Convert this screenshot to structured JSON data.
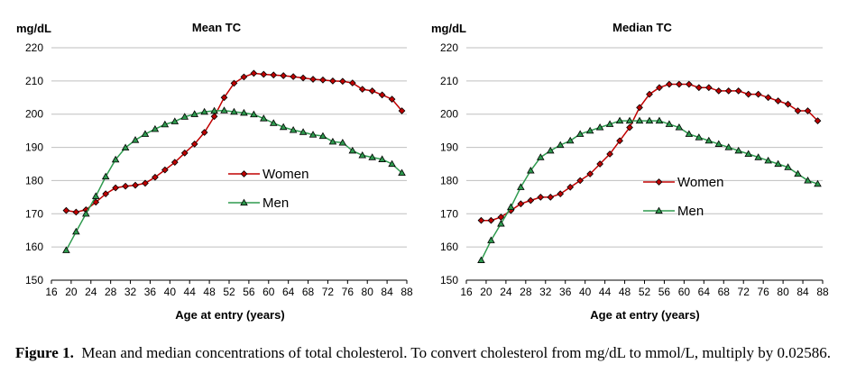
{
  "caption": {
    "label": "Figure 1.",
    "text": "Mean and median concentrations of total cholesterol. To convert cholesterol from mg/dL to mmol/L, multiply by 0.02586."
  },
  "colors": {
    "women": "#c00000",
    "men": "#2e9a4e"
  },
  "chart_data": [
    {
      "type": "line",
      "title": "Mean TC",
      "ylabel": "mg/dL",
      "xlabel": "Age at entry (years)",
      "xlim": [
        16,
        88
      ],
      "ylim": [
        150,
        220
      ],
      "xticks": [
        "16",
        "20",
        "24",
        "28",
        "32",
        "36",
        "40",
        "44",
        "48",
        "52",
        "56",
        "60",
        "64",
        "68",
        "72",
        "76",
        "80",
        "84",
        "88"
      ],
      "yticks": [
        "150",
        "160",
        "170",
        "180",
        "190",
        "200",
        "210",
        "220"
      ],
      "grid": true,
      "legend_position": "center-right",
      "x": [
        19,
        21,
        23,
        25,
        27,
        29,
        31,
        33,
        35,
        37,
        39,
        41,
        43,
        45,
        47,
        49,
        51,
        53,
        55,
        57,
        59,
        61,
        63,
        65,
        67,
        69,
        71,
        73,
        75,
        77,
        79,
        81,
        83,
        85,
        87
      ],
      "series": [
        {
          "name": "Women",
          "marker": "diamond",
          "values": [
            171,
            170.5,
            171.2,
            173.5,
            176,
            177.8,
            178.3,
            178.6,
            179.2,
            181,
            183.2,
            185.5,
            188.3,
            191,
            194.5,
            199.3,
            205,
            209.3,
            211.2,
            212.3,
            212,
            211.8,
            211.6,
            211.3,
            210.9,
            210.5,
            210.3,
            210,
            209.9,
            209.4,
            207.5,
            207,
            205.8,
            204.5,
            201
          ]
        },
        {
          "name": "Men",
          "marker": "triangle",
          "values": [
            159,
            164.6,
            170,
            175.3,
            181.2,
            186.3,
            189.9,
            192.2,
            194,
            195.5,
            196.9,
            197.8,
            199.2,
            200,
            200.7,
            201,
            201.1,
            200.7,
            200.4,
            199.9,
            198.7,
            197.3,
            196.1,
            195.2,
            194.6,
            193.8,
            193.4,
            191.7,
            191.4,
            189,
            187.6,
            187,
            186.4,
            185,
            182.3
          ]
        }
      ]
    },
    {
      "type": "line",
      "title": "Median TC",
      "ylabel": "mg/dL",
      "xlabel": "Age at entry (years)",
      "xlim": [
        16,
        88
      ],
      "ylim": [
        150,
        220
      ],
      "xticks": [
        "16",
        "20",
        "24",
        "28",
        "32",
        "36",
        "40",
        "44",
        "48",
        "52",
        "56",
        "60",
        "64",
        "68",
        "72",
        "76",
        "80",
        "84",
        "88"
      ],
      "yticks": [
        "150",
        "160",
        "170",
        "180",
        "190",
        "200",
        "210",
        "220"
      ],
      "grid": true,
      "legend_position": "center-right",
      "x": [
        19,
        21,
        23,
        25,
        27,
        29,
        31,
        33,
        35,
        37,
        39,
        41,
        43,
        45,
        47,
        49,
        51,
        53,
        55,
        57,
        59,
        61,
        63,
        65,
        67,
        69,
        71,
        73,
        75,
        77,
        79,
        81,
        83,
        85,
        87
      ],
      "series": [
        {
          "name": "Women",
          "marker": "diamond",
          "values": [
            168,
            168,
            169,
            171,
            173,
            174,
            175,
            175,
            176,
            178,
            180,
            182,
            185,
            188,
            192,
            196,
            202,
            206,
            208,
            209,
            209,
            209,
            208,
            208,
            207,
            207,
            207,
            206,
            206,
            205,
            204,
            203,
            201,
            201,
            198
          ]
        },
        {
          "name": "Men",
          "marker": "triangle",
          "values": [
            156,
            162,
            167,
            172,
            178,
            183,
            187,
            189,
            190.7,
            192,
            194,
            195,
            196,
            197,
            198,
            198,
            198,
            198,
            198,
            197,
            196,
            194,
            193,
            192,
            191,
            190,
            189,
            188,
            187,
            186,
            185,
            184,
            182,
            180,
            179
          ]
        }
      ]
    }
  ]
}
